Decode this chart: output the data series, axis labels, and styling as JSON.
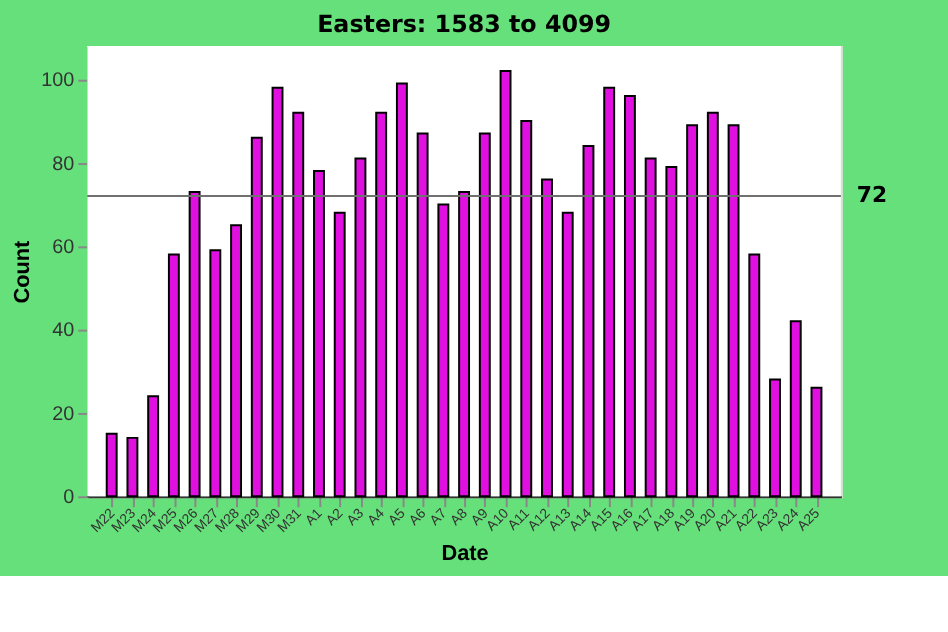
{
  "chart_data": {
    "type": "bar",
    "title": "Easters: 1583 to 4099",
    "xlabel": "Date",
    "ylabel": "Count",
    "categories": [
      "M22",
      "M23",
      "M24",
      "M25",
      "M26",
      "M27",
      "M28",
      "M29",
      "M30",
      "M31",
      "A1",
      "A2",
      "A3",
      "A4",
      "A5",
      "A6",
      "A7",
      "A8",
      "A9",
      "A10",
      "A11",
      "A12",
      "A13",
      "A14",
      "A15",
      "A16",
      "A17",
      "A18",
      "A19",
      "A20",
      "A21",
      "A22",
      "A23",
      "A24",
      "A25"
    ],
    "values": [
      15,
      14,
      24,
      58,
      73,
      59,
      65,
      86,
      98,
      92,
      78,
      68,
      81,
      92,
      99,
      87,
      70,
      73,
      87,
      102,
      90,
      76,
      68,
      84,
      98,
      96,
      81,
      79,
      89,
      92,
      89,
      58,
      28,
      42,
      26
    ],
    "color": "#e010e0",
    "ylim": [
      0,
      108
    ],
    "yticks": [
      0,
      20,
      40,
      60,
      80,
      100
    ],
    "grid": false,
    "ref_lines": [
      {
        "axis": "y",
        "value": 72,
        "label": "72",
        "color": "#707070"
      }
    ]
  }
}
